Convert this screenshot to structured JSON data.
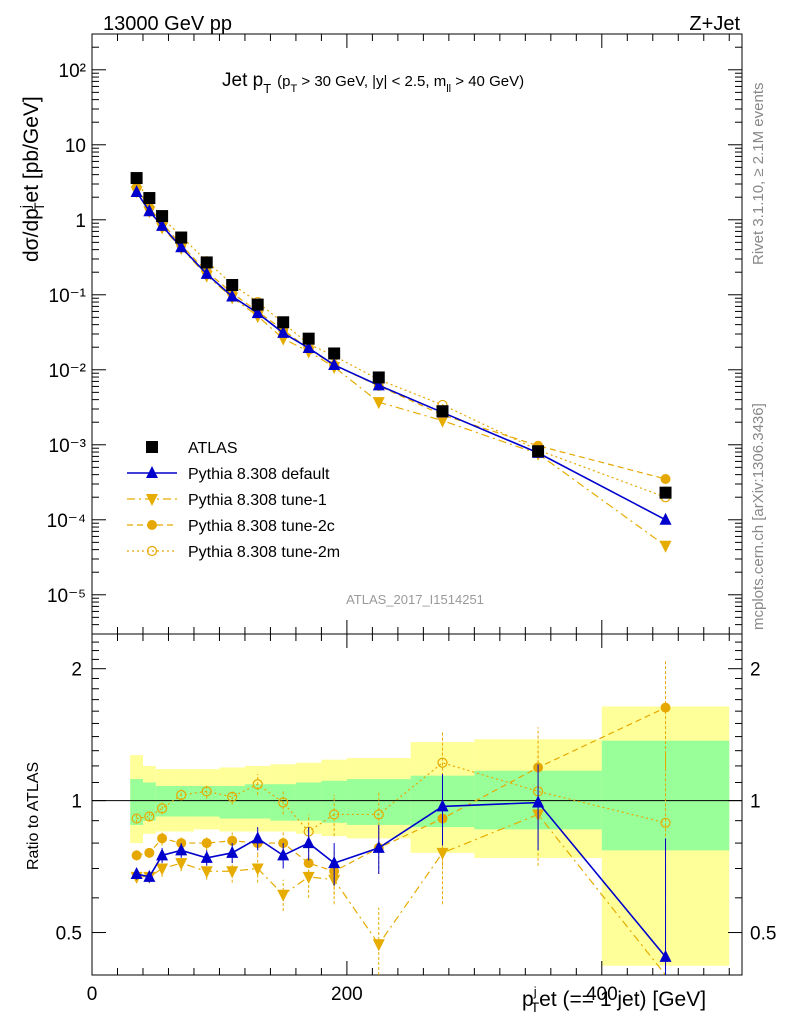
{
  "header": {
    "left": "13000 GeV pp",
    "right": "Z+Jet"
  },
  "side_labels": {
    "rivet": "Rivet 3.1.10, ≥ 2.1M events",
    "mcplots": "mcplots.cern.ch [arXiv:1306.3436]"
  },
  "analysis_id": "ATLAS_2017_I1514251",
  "main_panel": {
    "title_main": "Jet p",
    "title_sub": "T",
    "title_cuts": "(p  > 30 GeV, |y| < 2.5, m  > 40 GeV)",
    "ylabel": "dσ/dpⱼ et [pb/GeV]",
    "ylabel_plain": "dσ/dp",
    "ylabel_sup": "j",
    "ylabel_sub": "T",
    "ylabel_tail": "et [pb/GeV]",
    "ytick_labels": [
      "10⁻⁵",
      "10⁻⁴",
      "10⁻³",
      "10⁻²",
      "10⁻¹",
      "1",
      "10",
      "10²"
    ]
  },
  "ratio_panel": {
    "ylabel": "Ratio to ATLAS",
    "ytick_labels": [
      "0.5",
      "1",
      "2"
    ]
  },
  "xaxis": {
    "label": "p  et (== 1 jet) [GeV]",
    "label_p": "p",
    "label_sup": "j",
    "label_sub": "T",
    "label_tail": "et (== 1 jet) [GeV]",
    "tick_labels": [
      "0",
      "200",
      "400"
    ]
  },
  "legend": [
    {
      "name": "ATLAS",
      "color": "#000000",
      "marker": "square",
      "line": "none"
    },
    {
      "name": "Pythia 8.308 default",
      "color": "#0000cc",
      "marker": "triangle-up",
      "line": "solid"
    },
    {
      "name": "Pythia 8.308 tune-1",
      "color": "#e6ac00",
      "marker": "triangle-down",
      "line": "dashdot"
    },
    {
      "name": "Pythia 8.308 tune-2c",
      "color": "#e6a800",
      "marker": "circle",
      "line": "dashed"
    },
    {
      "name": "Pythia 8.308 tune-2m",
      "color": "#e6a800",
      "marker": "open-circle",
      "line": "dotted"
    }
  ],
  "chart_data": {
    "type": "scatter",
    "xlim": [
      0,
      510
    ],
    "ylim_main": [
      3e-06,
      300
    ],
    "ylim_ratio": [
      0.4,
      2.4
    ],
    "log_y": true,
    "x": [
      35,
      45,
      55,
      70,
      90,
      110,
      130,
      150,
      170,
      190,
      225,
      275,
      350,
      450
    ],
    "x_edges": [
      30,
      40,
      50,
      60,
      80,
      100,
      120,
      140,
      160,
      180,
      200,
      250,
      300,
      400,
      500
    ],
    "series": [
      {
        "name": "ATLAS",
        "values": [
          3.6,
          1.95,
          1.12,
          0.58,
          0.27,
          0.135,
          0.074,
          0.043,
          0.026,
          0.0165,
          0.0079,
          0.0028,
          0.00082,
          0.00023
        ]
      },
      {
        "name": "Pythia 8.308 default",
        "values": [
          2.35,
          1.3,
          0.83,
          0.43,
          0.19,
          0.095,
          0.057,
          0.031,
          0.0195,
          0.0116,
          0.0062,
          0.0027,
          0.00078,
          0.0001
        ],
        "ratio": [
          0.68,
          0.67,
          0.75,
          0.77,
          0.74,
          0.76,
          0.82,
          0.75,
          0.8,
          0.72,
          0.78,
          0.97,
          0.99,
          0.44
        ],
        "ratio_err": [
          0.02,
          0.02,
          0.03,
          0.03,
          0.03,
          0.04,
          0.05,
          0.05,
          0.07,
          0.08,
          0.1,
          0.18,
          0.22,
          0.38
        ]
      },
      {
        "name": "Pythia 8.308 tune-1",
        "values": [
          2.4,
          1.3,
          0.79,
          0.42,
          0.18,
          0.092,
          0.052,
          0.026,
          0.0175,
          0.0109,
          0.0037,
          0.0021,
          0.00076,
          4.5e-05
        ],
        "ratio": [
          0.67,
          0.67,
          0.7,
          0.72,
          0.69,
          0.69,
          0.7,
          0.61,
          0.67,
          0.66,
          0.47,
          0.76,
          0.93,
          0.2
        ],
        "ratio_err": [
          0.02,
          0.02,
          0.03,
          0.03,
          0.03,
          0.04,
          0.05,
          0.05,
          0.07,
          0.08,
          0.1,
          0.18,
          0.22,
          0.3
        ]
      },
      {
        "name": "Pythia 8.308 tune-2c",
        "values": [
          2.7,
          1.45,
          0.91,
          0.46,
          0.205,
          0.105,
          0.06,
          0.034,
          0.019,
          0.0115,
          0.0061,
          0.0025,
          0.00097,
          0.00035
        ],
        "ratio": [
          0.75,
          0.76,
          0.82,
          0.8,
          0.8,
          0.81,
          0.8,
          0.8,
          0.72,
          0.69,
          0.78,
          0.91,
          1.19,
          1.63
        ],
        "ratio_err": [
          0.02,
          0.02,
          0.03,
          0.03,
          0.03,
          0.04,
          0.05,
          0.05,
          0.07,
          0.08,
          0.1,
          0.2,
          0.28,
          0.45
        ]
      },
      {
        "name": "Pythia 8.308 tune-2m",
        "values": [
          3.3,
          1.8,
          1.07,
          0.6,
          0.28,
          0.138,
          0.08,
          0.042,
          0.022,
          0.0153,
          0.0074,
          0.0034,
          0.00085,
          0.0002
        ],
        "ratio": [
          0.91,
          0.92,
          0.96,
          1.03,
          1.05,
          1.02,
          1.09,
          0.99,
          0.85,
          0.93,
          0.93,
          1.22,
          1.05,
          0.89
        ],
        "ratio_err": [
          0.02,
          0.02,
          0.03,
          0.03,
          0.04,
          0.04,
          0.06,
          0.06,
          0.08,
          0.1,
          0.12,
          0.22,
          0.25,
          0.4
        ]
      }
    ],
    "atlas_ratio_band_stat": [
      [
        0.88,
        1.12
      ],
      [
        0.9,
        1.1
      ],
      [
        0.92,
        1.08
      ],
      [
        0.92,
        1.08
      ],
      [
        0.92,
        1.08
      ],
      [
        0.91,
        1.08
      ],
      [
        0.91,
        1.09
      ],
      [
        0.9,
        1.09
      ],
      [
        0.9,
        1.1
      ],
      [
        0.89,
        1.11
      ],
      [
        0.88,
        1.12
      ],
      [
        0.87,
        1.14
      ],
      [
        0.86,
        1.17
      ],
      [
        0.77,
        1.37
      ]
    ],
    "atlas_ratio_band_total": [
      [
        0.8,
        1.27
      ],
      [
        0.84,
        1.2
      ],
      [
        0.85,
        1.18
      ],
      [
        0.85,
        1.18
      ],
      [
        0.86,
        1.18
      ],
      [
        0.85,
        1.19
      ],
      [
        0.85,
        1.2
      ],
      [
        0.85,
        1.21
      ],
      [
        0.84,
        1.22
      ],
      [
        0.83,
        1.24
      ],
      [
        0.82,
        1.25
      ],
      [
        0.76,
        1.36
      ],
      [
        0.74,
        1.38
      ],
      [
        0.42,
        1.64
      ]
    ]
  }
}
